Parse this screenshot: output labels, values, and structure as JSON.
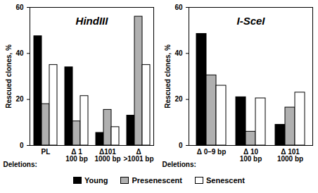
{
  "chart_data": [
    {
      "type": "bar",
      "title": "HindIII",
      "ylabel": "Rescued clones, %",
      "xlabel": "Deletions:",
      "categories": [
        "PL",
        "Δ 1\n100 bp",
        "Δ101\n1000 bp",
        "Δ\n>1001 bp"
      ],
      "series": [
        {
          "name": "Young",
          "color": "#000000",
          "values": [
            47.5,
            34,
            5.5,
            13
          ]
        },
        {
          "name": "Presenescent",
          "color": "#b0b0b0",
          "values": [
            18,
            10.5,
            15.5,
            56
          ]
        },
        {
          "name": "Senescent",
          "color": "#ffffff",
          "values": [
            35,
            21.5,
            8,
            35
          ]
        }
      ],
      "ylim": [
        0,
        60
      ],
      "yticks": [
        0,
        20,
        40,
        60
      ],
      "legend": "bottom"
    },
    {
      "type": "bar",
      "title": "I-SceI",
      "ylabel": "Rescued clones, %",
      "xlabel": "Deletions:",
      "categories": [
        "Δ 0–9 bp",
        "Δ 10\n100 bp",
        "Δ 101\n1000 bp"
      ],
      "series": [
        {
          "name": "Young",
          "color": "#000000",
          "values": [
            48.5,
            21,
            9
          ]
        },
        {
          "name": "Presenescent",
          "color": "#b0b0b0",
          "values": [
            30.5,
            6,
            16.5
          ]
        },
        {
          "name": "Senescent",
          "color": "#ffffff",
          "values": [
            26,
            20.5,
            23
          ]
        }
      ],
      "ylim": [
        0,
        60
      ],
      "yticks": [
        0,
        20,
        40,
        60
      ],
      "legend": "bottom"
    }
  ]
}
